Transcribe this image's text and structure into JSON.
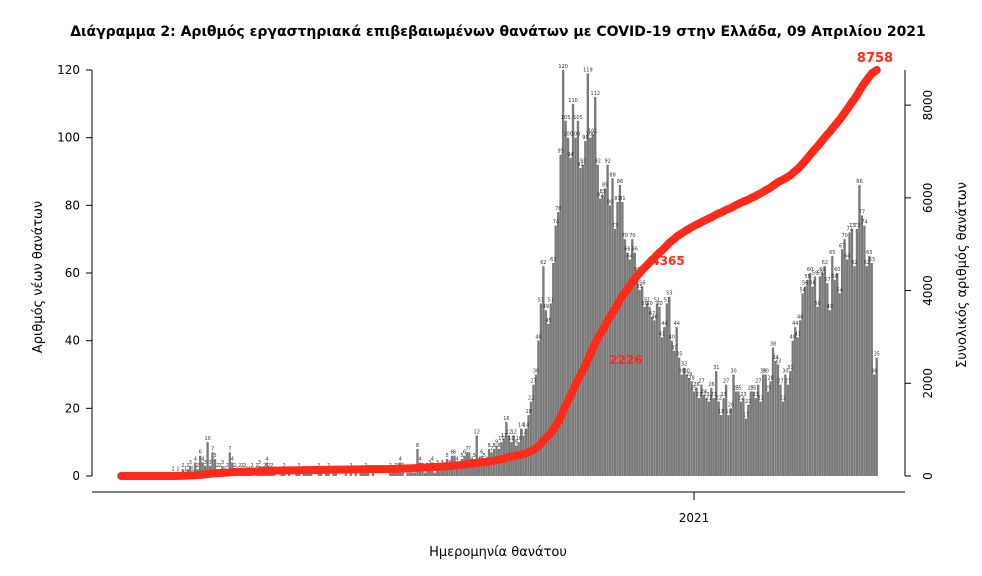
{
  "chart_data": {
    "type": "bar",
    "title": "Διάγραμμα 2: Αριθμός εργαστηριακά επιβεβαιωμένων θανάτων με COVID-19 στην Ελλάδα, 09 Απριλίου 2021",
    "xlabel": "Ημερομηνία θανάτου",
    "ylabel": "Αριθμός νέων θανάτων",
    "y2label": "Συνολικός αριθμός θανάτων",
    "x_tick_labels": [
      "2021"
    ],
    "y_ticks": [
      0,
      20,
      40,
      60,
      80,
      100,
      120
    ],
    "y2_ticks": [
      0,
      2000,
      4000,
      6000,
      8000
    ],
    "ylim": [
      0,
      120
    ],
    "y2lim": [
      0,
      8758
    ],
    "bar_color": "#7a7a7a",
    "line_color": "#ff2a1a",
    "series": [
      {
        "type": "bar",
        "values": [
          0,
          0,
          0,
          0,
          0,
          0,
          0,
          0,
          0,
          0,
          0,
          0,
          0,
          0,
          0,
          0,
          0,
          0,
          0,
          0,
          0,
          1,
          0,
          1,
          0,
          2,
          1,
          2,
          3,
          1,
          4,
          2,
          6,
          4,
          3,
          10,
          3,
          7,
          5,
          2,
          2,
          3,
          1,
          2,
          7,
          4,
          2,
          1,
          2,
          2,
          2,
          1,
          1,
          2,
          0,
          2,
          3,
          1,
          2,
          4,
          2,
          2,
          1,
          0,
          0,
          1,
          2,
          0,
          1,
          0,
          0,
          1,
          2,
          0,
          1,
          1,
          1,
          1,
          0,
          0,
          2,
          1,
          0,
          1,
          2,
          0,
          1,
          1,
          0,
          0,
          0,
          1,
          0,
          2,
          0,
          1,
          0,
          1,
          1,
          2,
          1,
          0,
          1,
          0,
          0,
          0,
          0,
          0,
          0,
          2,
          1,
          2,
          2,
          4,
          2,
          0,
          1,
          1,
          1,
          1,
          8,
          4,
          2,
          1,
          2,
          3,
          4,
          1,
          3,
          2,
          3,
          2,
          5,
          3,
          6,
          6,
          4,
          2,
          5,
          6,
          7,
          7,
          4,
          5,
          12,
          4,
          6,
          5,
          4,
          8,
          7,
          8,
          9,
          8,
          10,
          11,
          16,
          12,
          10,
          12,
          9,
          10,
          14,
          12,
          14,
          18,
          22,
          27,
          30,
          40,
          51,
          62,
          49,
          45,
          51,
          63,
          74,
          78,
          95,
          120,
          105,
          100,
          94,
          110,
          100,
          105,
          91,
          92,
          99,
          119,
          100,
          101,
          112,
          92,
          82,
          83,
          85,
          92,
          80,
          88,
          73,
          81,
          86,
          81,
          70,
          66,
          64,
          70,
          66,
          60,
          55,
          56,
          50,
          51,
          50,
          47,
          46,
          51,
          50,
          41,
          44,
          51,
          53,
          40,
          37,
          44,
          35,
          30,
          32,
          30,
          29,
          28,
          25,
          26,
          23,
          27,
          24,
          23,
          22,
          26,
          23,
          31,
          22,
          18,
          23,
          27,
          18,
          20,
          30,
          25,
          25,
          22,
          23,
          17,
          21,
          25,
          25,
          23,
          27,
          22,
          30,
          30,
          25,
          28,
          38,
          34,
          33,
          27,
          22,
          30,
          27,
          31,
          40,
          44,
          41,
          46,
          54,
          56,
          58,
          60,
          56,
          59,
          50,
          59,
          60,
          62,
          57,
          49,
          65,
          58,
          60,
          54,
          67,
          70,
          64,
          72,
          73,
          62,
          73,
          86,
          77,
          74,
          62,
          65,
          63,
          30,
          35
        ]
      },
      {
        "type": "line",
        "name": "Συνολικός αριθμός θανάτων"
      }
    ],
    "line_labels": [
      "2226",
      "4365",
      "8758"
    ]
  }
}
